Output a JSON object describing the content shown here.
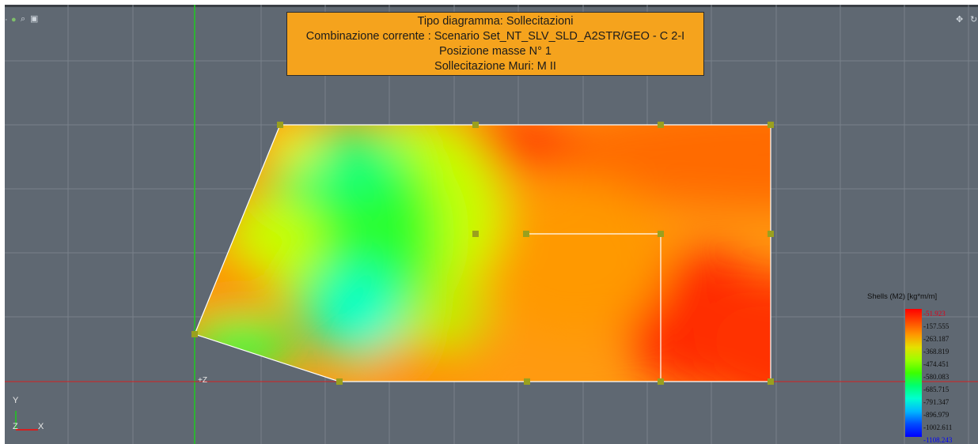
{
  "header": {
    "lines": [
      "Tipo diagramma: Sollecitazioni",
      "Combinazione corrente : Scenario Set_NT_SLV_SLD_A2STR/GEO - C 2-I",
      "Posizione masse N° 1",
      "Sollecitazione Muri: M II"
    ]
  },
  "legend": {
    "title": "Shells (M2) [kg*m/m]",
    "values": [
      "-51.923",
      "-157.555",
      "-263.187",
      "-368.819",
      "-474.451",
      "-580.083",
      "-685.715",
      "-791.347",
      "-896.979",
      "-1002.611",
      "-1108.243"
    ],
    "max_color": "#e0001a",
    "min_color": "#0000ff"
  },
  "axes": {
    "y": "Y",
    "z": "Z",
    "x": "X",
    "origin_label": "+Z"
  },
  "toolbar": {
    "left_icons": [
      "dot-icon",
      "zoom-icon",
      "monitor-icon"
    ],
    "right_icons": [
      "move-icon",
      "rotate-icon"
    ]
  },
  "colors": {
    "viewport_bg": "#5f6872",
    "grid": "#7a838c",
    "title_bg": "#f5a31d",
    "node": "#9aa01e",
    "axis_green": "#1ec91e",
    "axis_red": "#d42020"
  }
}
